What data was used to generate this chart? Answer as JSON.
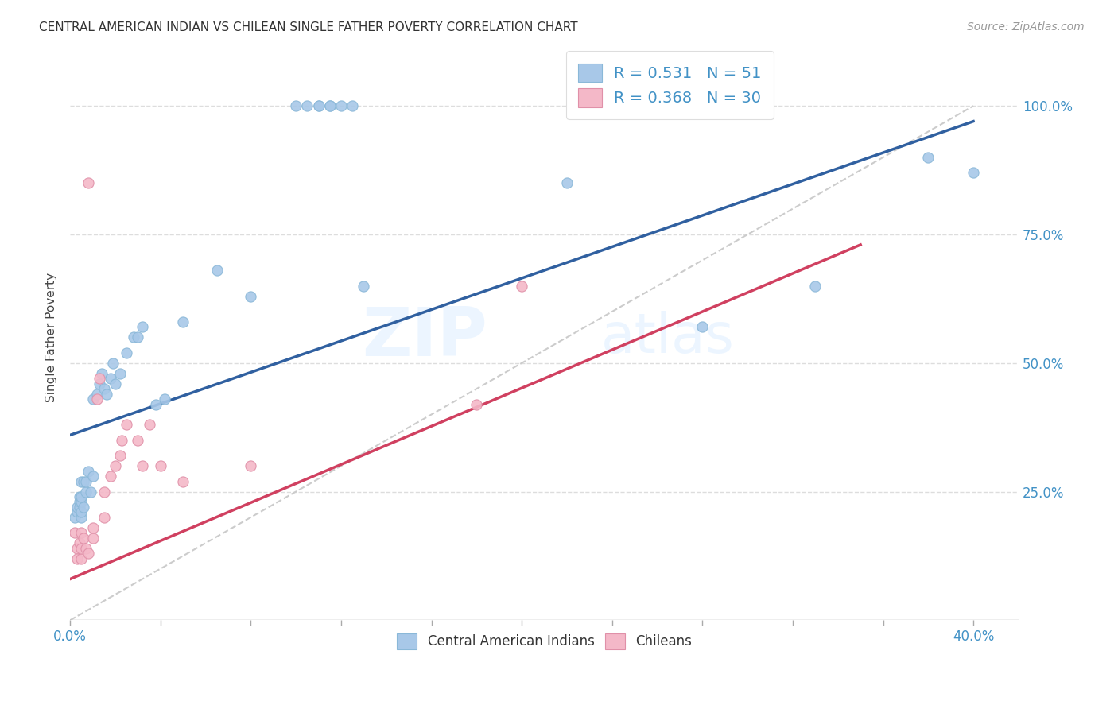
{
  "title": "CENTRAL AMERICAN INDIAN VS CHILEAN SINGLE FATHER POVERTY CORRELATION CHART",
  "source": "Source: ZipAtlas.com",
  "ylabel": "Single Father Poverty",
  "y_tick_labels": [
    "100.0%",
    "75.0%",
    "50.0%",
    "25.0%"
  ],
  "y_tick_positions": [
    1.0,
    0.75,
    0.5,
    0.25
  ],
  "xlim": [
    0.0,
    0.42
  ],
  "ylim": [
    0.0,
    1.1
  ],
  "xlim_display": [
    0.0,
    0.4
  ],
  "legend_r1": "R = 0.531   N = 51",
  "legend_r2": "R = 0.368   N = 30",
  "blue_color": "#a8c8e8",
  "pink_color": "#f4b8c8",
  "blue_line_color": "#3060a0",
  "pink_line_color": "#d04060",
  "diagonal_color": "#cccccc",
  "watermark_zip": "ZIP",
  "watermark_atlas": "atlas",
  "blue_scatter_x": [
    0.002,
    0.003,
    0.003,
    0.004,
    0.004,
    0.004,
    0.005,
    0.005,
    0.005,
    0.005,
    0.005,
    0.006,
    0.006,
    0.007,
    0.007,
    0.008,
    0.009,
    0.01,
    0.01,
    0.012,
    0.013,
    0.014,
    0.015,
    0.016,
    0.018,
    0.019,
    0.02,
    0.022,
    0.025,
    0.028,
    0.03,
    0.032,
    0.038,
    0.042,
    0.05,
    0.065,
    0.08,
    0.1,
    0.105,
    0.11,
    0.11,
    0.115,
    0.115,
    0.12,
    0.125,
    0.13,
    0.22,
    0.28,
    0.33,
    0.38,
    0.4
  ],
  "blue_scatter_y": [
    0.2,
    0.21,
    0.22,
    0.22,
    0.23,
    0.24,
    0.2,
    0.21,
    0.23,
    0.24,
    0.27,
    0.22,
    0.27,
    0.25,
    0.27,
    0.29,
    0.25,
    0.28,
    0.43,
    0.44,
    0.46,
    0.48,
    0.45,
    0.44,
    0.47,
    0.5,
    0.46,
    0.48,
    0.52,
    0.55,
    0.55,
    0.57,
    0.42,
    0.43,
    0.58,
    0.68,
    0.63,
    1.0,
    1.0,
    1.0,
    1.0,
    1.0,
    1.0,
    1.0,
    1.0,
    0.65,
    0.85,
    0.57,
    0.65,
    0.9,
    0.87
  ],
  "pink_scatter_x": [
    0.002,
    0.003,
    0.003,
    0.004,
    0.005,
    0.005,
    0.005,
    0.006,
    0.007,
    0.008,
    0.008,
    0.01,
    0.01,
    0.012,
    0.013,
    0.015,
    0.015,
    0.018,
    0.02,
    0.022,
    0.023,
    0.025,
    0.03,
    0.032,
    0.035,
    0.04,
    0.05,
    0.08,
    0.18,
    0.2
  ],
  "pink_scatter_y": [
    0.17,
    0.14,
    0.12,
    0.15,
    0.12,
    0.14,
    0.17,
    0.16,
    0.14,
    0.13,
    0.85,
    0.16,
    0.18,
    0.43,
    0.47,
    0.2,
    0.25,
    0.28,
    0.3,
    0.32,
    0.35,
    0.38,
    0.35,
    0.3,
    0.38,
    0.3,
    0.27,
    0.3,
    0.42,
    0.65
  ],
  "blue_line_x": [
    0.0,
    0.4
  ],
  "blue_line_y": [
    0.36,
    0.97
  ],
  "pink_line_x": [
    0.0,
    0.35
  ],
  "pink_line_y": [
    0.08,
    0.73
  ],
  "diag_line_x": [
    0.0,
    0.4
  ],
  "diag_line_y": [
    0.0,
    1.0
  ]
}
